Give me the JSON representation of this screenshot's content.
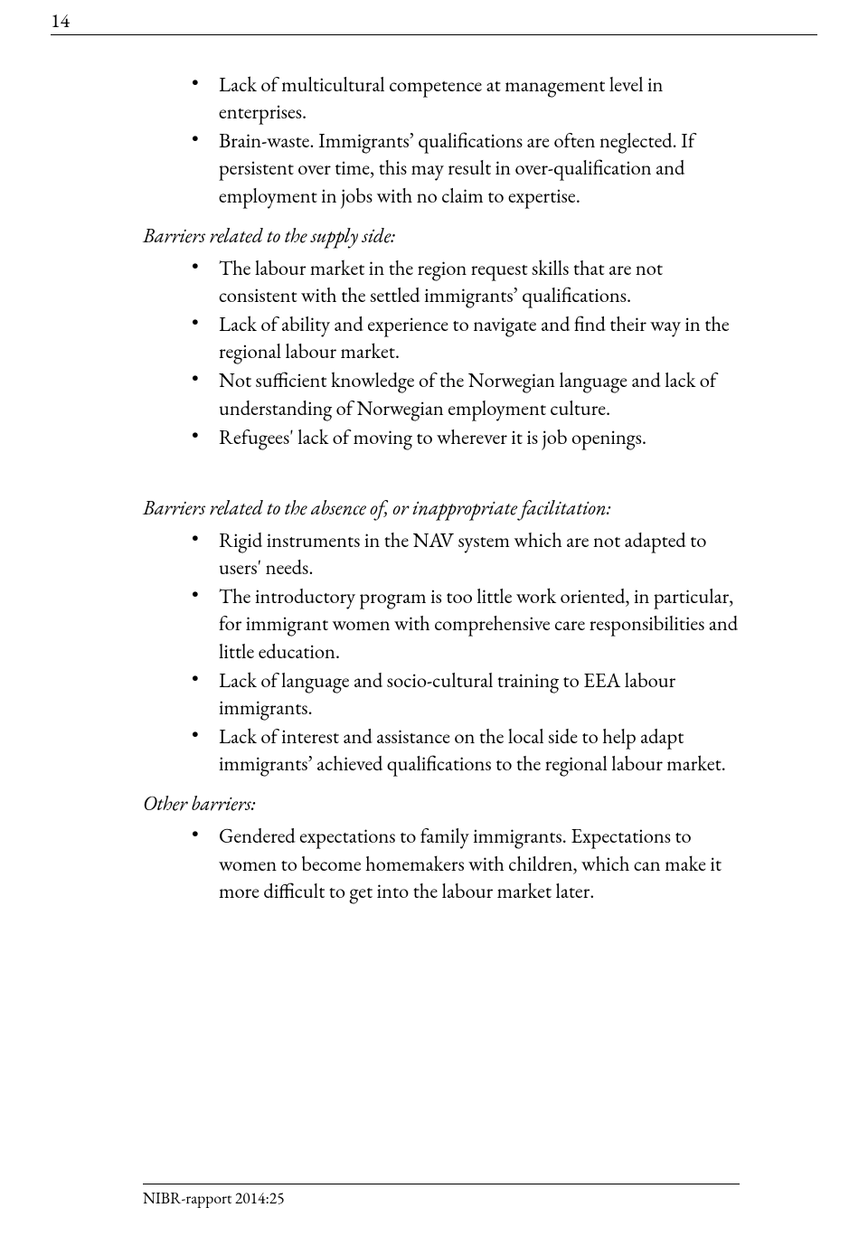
{
  "page_number": "14",
  "footer": "NIBR-rapport 2014:25",
  "sections": [
    {
      "heading": null,
      "items": [
        "Lack of multicultural competence at management level in enterprises.",
        "Brain-waste. Immigrants’ qualifications are often neglected. If persistent over time, this may result in over-qualification and employment in jobs with no claim to expertise."
      ]
    },
    {
      "heading": "Barriers related to the supply side:",
      "items": [
        "The labour market in the region request skills that are not consistent with the settled immigrants’ qualifications.",
        "Lack of ability and experience to navigate and find their way in the regional labour market.",
        "Not sufficient knowledge of the Norwegian language and lack of understanding of Norwegian employment culture.",
        "Refugees' lack of moving to wherever it is job openings."
      ]
    },
    {
      "heading": "Barriers related to the absence of, or inappropriate facilitation:",
      "gap_before": true,
      "items": [
        "Rigid instruments in the NAV system which are not adapted to users' needs.",
        "The introductory program is too little work oriented, in particular, for immigrant women with comprehensive care responsibilities and little education.",
        "Lack of language and socio-cultural training to EEA labour immigrants.",
        "Lack of interest and assistance on the local side to help adapt immigrants’ achieved qualifications to the regional labour market."
      ]
    },
    {
      "heading": "Other barriers:",
      "items": [
        "Gendered expectations to family immigrants. Expectations to women to become homemakers with children, which can make it more difficult to get into the labour market later."
      ]
    }
  ]
}
